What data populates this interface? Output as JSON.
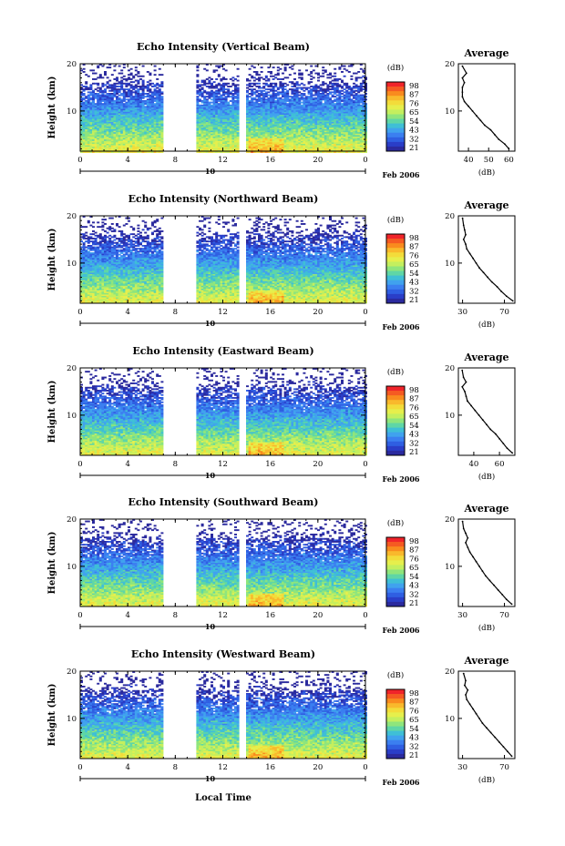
{
  "figure": {
    "xlabel": "Local Time",
    "date_label": "Feb 2006",
    "day_label": "10"
  },
  "colorbar": {
    "unit": "(dB)",
    "tick_labels": [
      "98",
      "87",
      "76",
      "65",
      "54",
      "43",
      "32",
      "21"
    ],
    "colors": [
      "#f0242a",
      "#f55a22",
      "#f98b1e",
      "#f9b92c",
      "#f3dc3a",
      "#e6ef4c",
      "#c4ef5e",
      "#8fe57c",
      "#5fd6a6",
      "#3fbfd6",
      "#40a2ee",
      "#3b7ff0",
      "#2f5fe2",
      "#2a3ec8",
      "#2b2a9e"
    ]
  },
  "chart_data": [
    {
      "type": "heatmap",
      "title": "Echo Intensity (Vertical Beam)",
      "ylabel": "Height (km)",
      "x_tick_labels": [
        "0",
        "4",
        "8",
        "12",
        "16",
        "20",
        "0"
      ],
      "y_tick_labels": [
        "20",
        "10"
      ],
      "xlim": [
        0,
        24
      ],
      "ylim": [
        1.5,
        20
      ],
      "data_gaps_hours": [
        [
          6.8,
          9.7
        ],
        [
          13.2,
          13.8
        ]
      ],
      "colorbar_range_db": [
        21,
        98
      ],
      "profile": {
        "title": "Average",
        "xlabel": "(dB)",
        "x_tick_labels": [
          "40",
          "50",
          "60"
        ],
        "xlim": [
          35,
          63
        ],
        "y_tick_labels": [
          "20",
          "10"
        ],
        "height_km": [
          19.5,
          18,
          17,
          16,
          15,
          14,
          13,
          12,
          11,
          10,
          9,
          8,
          7,
          6,
          5,
          4,
          3,
          2
        ],
        "mean_db": [
          37,
          39,
          37,
          38,
          37,
          37,
          37,
          38,
          40,
          42,
          44,
          46,
          48,
          51,
          53,
          55,
          58,
          60
        ]
      }
    },
    {
      "type": "heatmap",
      "title": "Echo Intensity (Northward Beam)",
      "ylabel": "Height (km)",
      "x_tick_labels": [
        "0",
        "4",
        "8",
        "12",
        "16",
        "20",
        "0"
      ],
      "y_tick_labels": [
        "20",
        "10"
      ],
      "xlim": [
        0,
        24
      ],
      "ylim": [
        1.5,
        20
      ],
      "data_gaps_hours": [
        [
          6.8,
          9.7
        ],
        [
          13.2,
          13.8
        ]
      ],
      "colorbar_range_db": [
        21,
        98
      ],
      "profile": {
        "title": "Average",
        "xlabel": "(dB)",
        "x_tick_labels": [
          "30",
          "70"
        ],
        "xlim": [
          26,
          80
        ],
        "y_tick_labels": [
          "20",
          "10"
        ],
        "height_km": [
          19.5,
          18,
          17,
          16,
          15,
          14,
          13,
          12,
          11,
          10,
          9,
          8,
          7,
          6,
          5,
          4,
          3,
          2
        ],
        "mean_db": [
          30,
          31,
          32,
          33,
          31,
          33,
          34,
          37,
          40,
          43,
          46,
          50,
          54,
          58,
          63,
          67,
          72,
          78
        ]
      }
    },
    {
      "type": "heatmap",
      "title": "Echo Intensity (Eastward Beam)",
      "ylabel": "Height (km)",
      "x_tick_labels": [
        "0",
        "4",
        "8",
        "12",
        "16",
        "20",
        "0"
      ],
      "y_tick_labels": [
        "20",
        "10"
      ],
      "xlim": [
        0,
        24
      ],
      "ylim": [
        1.5,
        20
      ],
      "data_gaps_hours": [
        [
          6.8,
          9.7
        ],
        [
          13.2,
          13.8
        ]
      ],
      "colorbar_range_db": [
        21,
        98
      ],
      "profile": {
        "title": "Average",
        "xlabel": "(dB)",
        "x_tick_labels": [
          "40",
          "60"
        ],
        "xlim": [
          28,
          72
        ],
        "y_tick_labels": [
          "20",
          "10"
        ],
        "height_km": [
          19.5,
          18,
          17,
          16,
          15,
          14,
          13,
          12,
          11,
          10,
          9,
          8,
          7,
          6,
          5,
          4,
          3,
          2
        ],
        "mean_db": [
          31,
          32,
          34,
          31,
          33,
          34,
          35,
          38,
          41,
          44,
          47,
          50,
          53,
          57,
          60,
          63,
          66,
          70
        ]
      }
    },
    {
      "type": "heatmap",
      "title": "Echo Intensity (Southward Beam)",
      "ylabel": "Height (km)",
      "x_tick_labels": [
        "0",
        "4",
        "8",
        "12",
        "16",
        "20",
        "0"
      ],
      "y_tick_labels": [
        "20",
        "10"
      ],
      "xlim": [
        0,
        24
      ],
      "ylim": [
        1.5,
        20
      ],
      "data_gaps_hours": [
        [
          6.8,
          9.7
        ],
        [
          13.2,
          13.8
        ]
      ],
      "colorbar_range_db": [
        21,
        98
      ],
      "profile": {
        "title": "Average",
        "xlabel": "(dB)",
        "x_tick_labels": [
          "30",
          "70"
        ],
        "xlim": [
          26,
          80
        ],
        "y_tick_labels": [
          "20",
          "10"
        ],
        "height_km": [
          19.5,
          18,
          17,
          16,
          15,
          14,
          13,
          12,
          11,
          10,
          9,
          8,
          7,
          6,
          5,
          4,
          3,
          2
        ],
        "mean_db": [
          30,
          31,
          33,
          35,
          33,
          35,
          37,
          40,
          43,
          46,
          49,
          52,
          56,
          60,
          64,
          68,
          72,
          77
        ]
      }
    },
    {
      "type": "heatmap",
      "title": "Echo Intensity (Westward Beam)",
      "ylabel": "Height (km)",
      "x_tick_labels": [
        "0",
        "4",
        "8",
        "12",
        "16",
        "20",
        "0"
      ],
      "y_tick_labels": [
        "20",
        "10"
      ],
      "xlim": [
        0,
        24
      ],
      "ylim": [
        1.5,
        20
      ],
      "data_gaps_hours": [
        [
          6.8,
          9.7
        ],
        [
          13.2,
          13.8
        ]
      ],
      "colorbar_range_db": [
        21,
        98
      ],
      "profile": {
        "title": "Average",
        "xlabel": "(dB)",
        "x_tick_labels": [
          "30",
          "70"
        ],
        "xlim": [
          26,
          80
        ],
        "y_tick_labels": [
          "20",
          "10"
        ],
        "height_km": [
          19.5,
          18,
          17,
          16,
          15,
          14,
          13,
          12,
          11,
          10,
          9,
          8,
          7,
          6,
          5,
          4,
          3,
          2
        ],
        "mean_db": [
          31,
          33,
          32,
          35,
          33,
          34,
          37,
          40,
          43,
          46,
          49,
          53,
          57,
          61,
          65,
          69,
          73,
          77
        ]
      }
    }
  ]
}
